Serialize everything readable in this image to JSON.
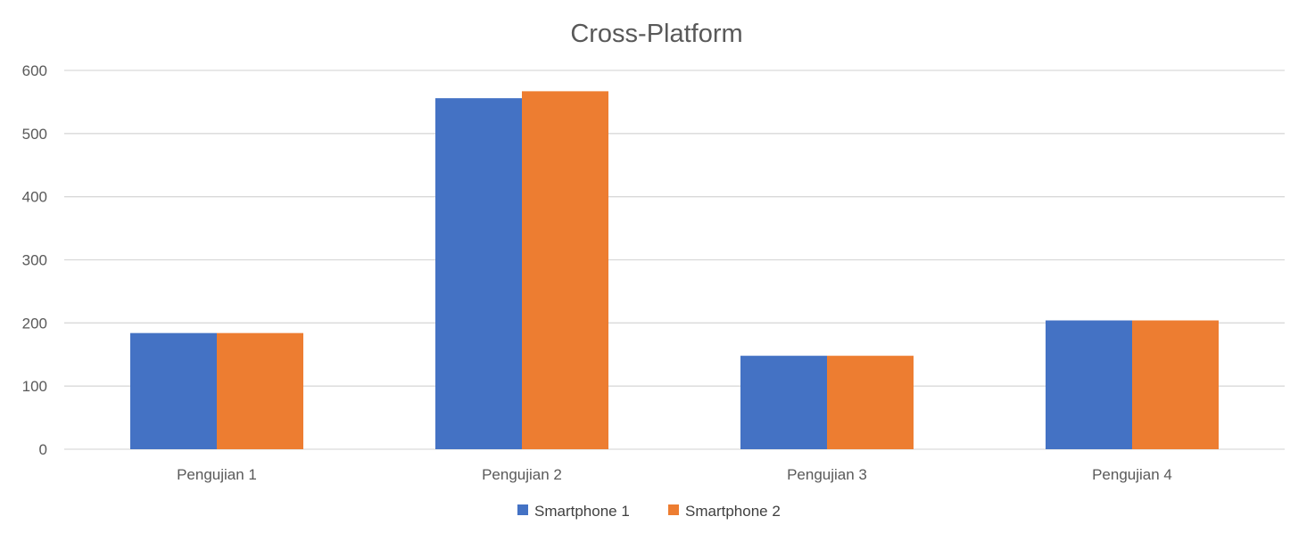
{
  "chart_data": {
    "type": "bar",
    "title": "Cross-Platform",
    "xlabel": "",
    "ylabel": "",
    "categories": [
      "Pengujian 1",
      "Pengujian 2",
      "Pengujian 3",
      "Pengujian 4"
    ],
    "series": [
      {
        "name": "Smartphone 1",
        "color": "#4472c4",
        "values": [
          184,
          556,
          148,
          204
        ]
      },
      {
        "name": "Smartphone 2",
        "color": "#ed7d31",
        "values": [
          184,
          567,
          148,
          204
        ]
      }
    ],
    "ylim": [
      0,
      600
    ],
    "yticks": [
      "0",
      "100",
      "200",
      "300",
      "400",
      "500",
      "600"
    ],
    "grid": true,
    "legend_position": "bottom"
  }
}
